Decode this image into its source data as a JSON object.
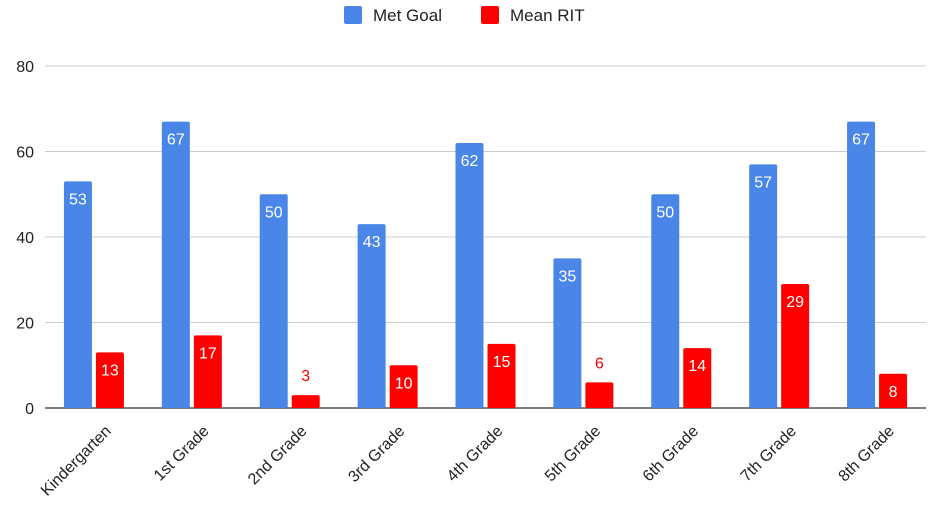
{
  "chart_data": {
    "type": "bar",
    "title": "",
    "xlabel": "",
    "ylabel": "",
    "ylim": [
      0,
      80
    ],
    "yticks": [
      0,
      20,
      40,
      60,
      80
    ],
    "grid": true,
    "legend_position": "top-center",
    "categories": [
      "Kindergarten",
      "1st Grade",
      "2nd Grade",
      "3rd Grade",
      "4th Grade",
      "5th Grade",
      "6th Grade",
      "7th Grade",
      "8th Grade"
    ],
    "series": [
      {
        "name": "Met Goal",
        "color": "#4a86e8",
        "values": [
          53,
          67,
          50,
          43,
          62,
          35,
          50,
          57,
          67
        ]
      },
      {
        "name": "Mean RIT",
        "color": "#ff0000",
        "values": [
          13,
          17,
          3,
          10,
          15,
          6,
          14,
          29,
          8
        ]
      }
    ]
  }
}
